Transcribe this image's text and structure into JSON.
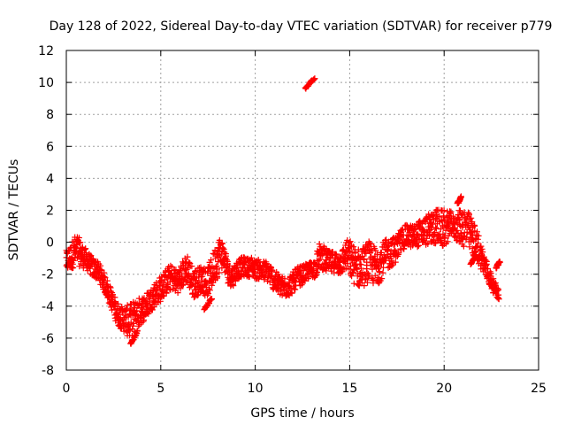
{
  "chart_data": {
    "type": "scatter",
    "title": "Day 128 of 2022, Sidereal Day-to-day VTEC variation (SDTVAR) for receiver p779",
    "xlabel": "GPS time / hours",
    "ylabel": "SDTVAR / TECUs",
    "xlim": [
      0,
      25
    ],
    "ylim": [
      -8,
      12
    ],
    "xticks": [
      0,
      5,
      10,
      15,
      20,
      25
    ],
    "yticks": [
      -8,
      -6,
      -4,
      -2,
      0,
      2,
      4,
      6,
      8,
      10,
      12
    ],
    "xtick_labels": [
      "0",
      "5",
      "10",
      "15",
      "20",
      "25"
    ],
    "ytick_labels": [
      "-8",
      "-6",
      "-4",
      "-2",
      "0",
      "2",
      "4",
      "6",
      "8",
      "10",
      "12"
    ],
    "grid": true,
    "marker": "+",
    "color": "#ff0000",
    "series": [
      {
        "name": "SDTVAR",
        "band_width": [
          [
            0.0,
            1.4
          ],
          [
            0.5,
            2.0
          ],
          [
            1.0,
            1.3
          ],
          [
            1.5,
            1.2
          ],
          [
            2.0,
            1.2
          ],
          [
            2.5,
            1.3
          ],
          [
            3.0,
            1.5
          ],
          [
            3.5,
            2.5
          ],
          [
            4.0,
            1.7
          ],
          [
            4.5,
            1.5
          ],
          [
            5.0,
            1.6
          ],
          [
            5.5,
            1.6
          ],
          [
            6.0,
            1.5
          ],
          [
            6.5,
            2.0
          ],
          [
            7.0,
            1.7
          ],
          [
            7.5,
            1.8
          ],
          [
            8.0,
            2.4
          ],
          [
            8.5,
            1.4
          ],
          [
            9.0,
            1.2
          ],
          [
            9.5,
            1.2
          ],
          [
            10.0,
            1.2
          ],
          [
            10.5,
            1.3
          ],
          [
            11.0,
            1.3
          ],
          [
            11.5,
            1.4
          ],
          [
            12.0,
            1.3
          ],
          [
            12.5,
            1.2
          ],
          [
            13.0,
            1.0
          ],
          [
            13.5,
            1.6
          ],
          [
            14.0,
            1.4
          ],
          [
            14.5,
            1.4
          ],
          [
            15.0,
            2.3
          ],
          [
            15.5,
            2.5
          ],
          [
            16.0,
            2.6
          ],
          [
            16.5,
            2.4
          ],
          [
            17.0,
            2.0
          ],
          [
            17.5,
            1.6
          ],
          [
            18.0,
            1.4
          ],
          [
            18.5,
            1.5
          ],
          [
            19.0,
            1.8
          ],
          [
            19.5,
            2.2
          ],
          [
            20.0,
            2.4
          ],
          [
            20.5,
            1.2
          ],
          [
            21.0,
            2.6
          ],
          [
            21.5,
            2.3
          ],
          [
            22.0,
            1.6
          ],
          [
            22.5,
            1.0
          ],
          [
            22.9,
            0.6
          ]
        ],
        "center": [
          [
            0.0,
            -1.2
          ],
          [
            0.2,
            -1.0
          ],
          [
            0.4,
            -0.6
          ],
          [
            0.6,
            -0.5
          ],
          [
            0.8,
            -0.8
          ],
          [
            1.0,
            -1.0
          ],
          [
            1.2,
            -1.3
          ],
          [
            1.4,
            -1.6
          ],
          [
            1.6,
            -1.7
          ],
          [
            1.8,
            -2.0
          ],
          [
            2.0,
            -2.5
          ],
          [
            2.2,
            -3.0
          ],
          [
            2.4,
            -3.6
          ],
          [
            2.6,
            -4.2
          ],
          [
            2.8,
            -4.6
          ],
          [
            3.0,
            -4.8
          ],
          [
            3.2,
            -4.9
          ],
          [
            3.4,
            -5.0
          ],
          [
            3.6,
            -4.8
          ],
          [
            3.8,
            -4.5
          ],
          [
            4.0,
            -4.2
          ],
          [
            4.2,
            -4.0
          ],
          [
            4.4,
            -3.7
          ],
          [
            4.6,
            -3.4
          ],
          [
            4.8,
            -3.1
          ],
          [
            5.0,
            -2.9
          ],
          [
            5.2,
            -2.6
          ],
          [
            5.4,
            -2.3
          ],
          [
            5.6,
            -2.2
          ],
          [
            5.8,
            -2.4
          ],
          [
            6.0,
            -2.4
          ],
          [
            6.2,
            -1.9
          ],
          [
            6.4,
            -1.6
          ],
          [
            6.6,
            -2.3
          ],
          [
            6.8,
            -2.6
          ],
          [
            7.0,
            -2.4
          ],
          [
            7.2,
            -2.2
          ],
          [
            7.4,
            -2.6
          ],
          [
            7.6,
            -2.2
          ],
          [
            7.8,
            -1.6
          ],
          [
            8.0,
            -1.0
          ],
          [
            8.2,
            -0.6
          ],
          [
            8.4,
            -1.2
          ],
          [
            8.6,
            -2.0
          ],
          [
            8.8,
            -2.2
          ],
          [
            9.0,
            -1.8
          ],
          [
            9.2,
            -1.6
          ],
          [
            9.4,
            -1.5
          ],
          [
            9.6,
            -1.6
          ],
          [
            9.8,
            -1.5
          ],
          [
            10.0,
            -1.7
          ],
          [
            10.2,
            -1.7
          ],
          [
            10.4,
            -1.8
          ],
          [
            10.6,
            -1.8
          ],
          [
            10.8,
            -2.0
          ],
          [
            11.0,
            -2.4
          ],
          [
            11.2,
            -2.6
          ],
          [
            11.4,
            -2.8
          ],
          [
            11.6,
            -2.8
          ],
          [
            11.8,
            -2.7
          ],
          [
            12.0,
            -2.5
          ],
          [
            12.2,
            -2.2
          ],
          [
            12.4,
            -2.1
          ],
          [
            12.6,
            -2.0
          ],
          [
            12.8,
            -1.8
          ],
          [
            13.0,
            -1.7
          ],
          [
            13.2,
            -1.6
          ],
          [
            13.4,
            -0.8
          ],
          [
            13.6,
            -1.0
          ],
          [
            13.8,
            -1.2
          ],
          [
            14.0,
            -1.3
          ],
          [
            14.2,
            -1.2
          ],
          [
            14.4,
            -1.4
          ],
          [
            14.6,
            -1.2
          ],
          [
            14.8,
            -0.8
          ],
          [
            15.0,
            -1.0
          ],
          [
            15.2,
            -1.4
          ],
          [
            15.4,
            -1.6
          ],
          [
            15.6,
            -1.6
          ],
          [
            15.8,
            -1.4
          ],
          [
            16.0,
            -1.2
          ],
          [
            16.2,
            -1.4
          ],
          [
            16.4,
            -1.5
          ],
          [
            16.6,
            -1.3
          ],
          [
            16.8,
            -1.0
          ],
          [
            17.0,
            -0.8
          ],
          [
            17.2,
            -0.6
          ],
          [
            17.4,
            -0.5
          ],
          [
            17.6,
            -0.1
          ],
          [
            17.8,
            0.2
          ],
          [
            18.0,
            0.4
          ],
          [
            18.2,
            0.4
          ],
          [
            18.4,
            0.3
          ],
          [
            18.6,
            0.5
          ],
          [
            18.8,
            0.6
          ],
          [
            19.0,
            0.7
          ],
          [
            19.2,
            0.8
          ],
          [
            19.4,
            0.9
          ],
          [
            19.6,
            1.0
          ],
          [
            19.8,
            0.9
          ],
          [
            20.0,
            0.8
          ],
          [
            20.2,
            1.0
          ],
          [
            20.4,
            1.2
          ],
          [
            20.6,
            0.8
          ],
          [
            20.8,
            1.0
          ],
          [
            21.0,
            1.0
          ],
          [
            21.2,
            0.8
          ],
          [
            21.4,
            0.5
          ],
          [
            21.6,
            0.1
          ],
          [
            21.8,
            -0.4
          ],
          [
            22.0,
            -1.0
          ],
          [
            22.2,
            -1.6
          ],
          [
            22.4,
            -2.2
          ],
          [
            22.6,
            -2.7
          ],
          [
            22.8,
            -3.1
          ],
          [
            22.9,
            -3.3
          ]
        ],
        "clusters": [
          {
            "x": [
              12.65,
              13.15
            ],
            "y": [
              9.6,
              10.3
            ]
          },
          {
            "x": [
              22.75,
              22.95
            ],
            "y": [
              -1.6,
              -1.2
            ]
          },
          {
            "x": [
              21.4,
              21.7
            ],
            "y": [
              -1.4,
              -0.8
            ]
          },
          {
            "x": [
              20.7,
              20.9
            ],
            "y": [
              2.4,
              2.8
            ]
          },
          {
            "x": [
              3.4,
              3.75
            ],
            "y": [
              -6.4,
              -5.6
            ]
          },
          {
            "x": [
              7.3,
              7.7
            ],
            "y": [
              -4.2,
              -3.5
            ]
          }
        ]
      }
    ]
  }
}
